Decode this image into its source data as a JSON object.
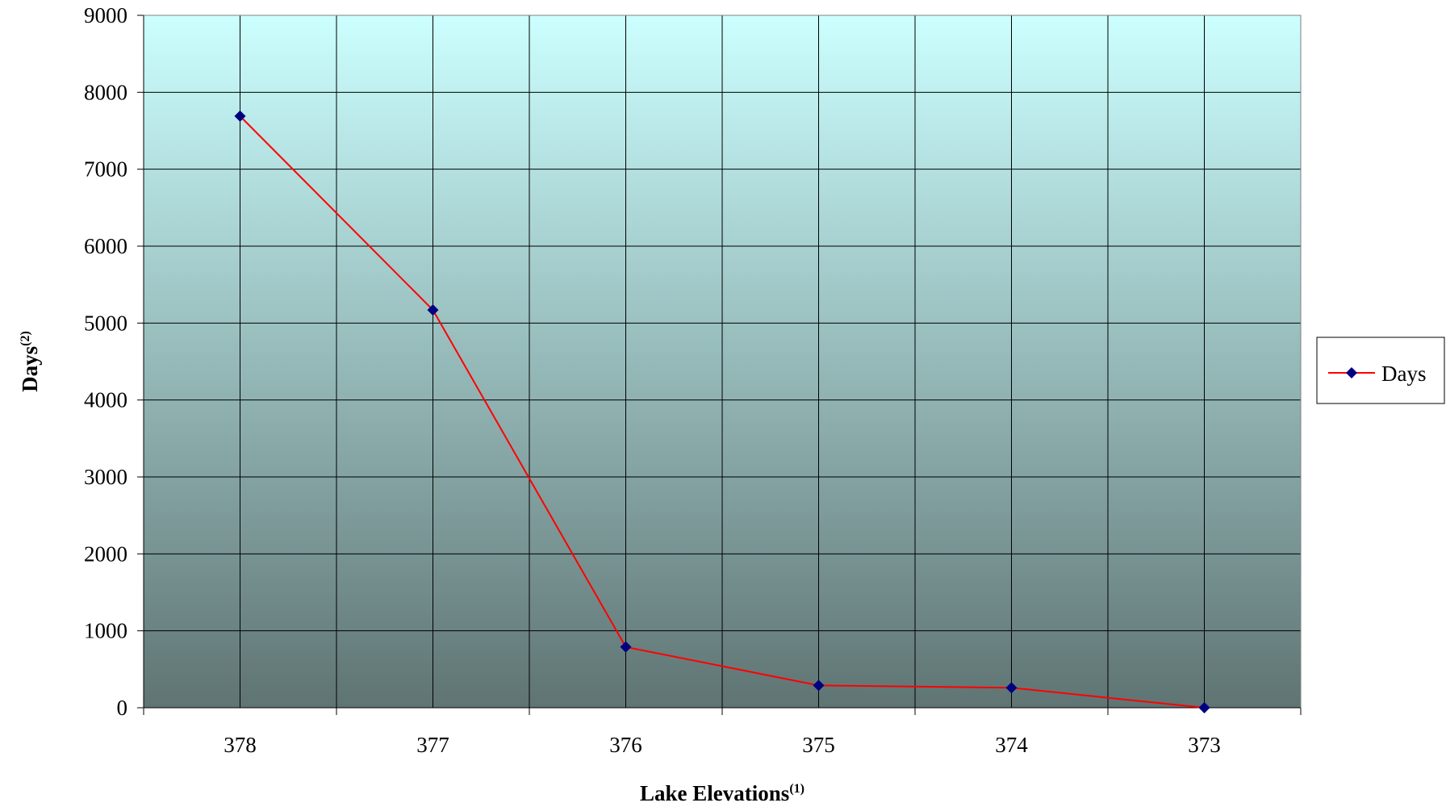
{
  "chart_data": {
    "type": "line",
    "title": "",
    "xlabel": "Lake Elevations",
    "xlabel_sup": "(1)",
    "ylabel": "Days",
    "ylabel_sup": "(2)",
    "categories": [
      "378",
      "377",
      "376",
      "375",
      "374",
      "373"
    ],
    "series": [
      {
        "name": "Days",
        "values": [
          7690,
          5170,
          790,
          290,
          260,
          0
        ],
        "color": "#ff0000",
        "marker_color": "#000080"
      }
    ],
    "ylim": [
      0,
      9000
    ],
    "yticks": [
      "0",
      "1000",
      "2000",
      "3000",
      "4000",
      "5000",
      "6000",
      "7000",
      "8000",
      "9000"
    ],
    "grid": true,
    "legend": "right",
    "plot_background": {
      "top": "#ccffff",
      "bottom": "#5f7473"
    }
  }
}
